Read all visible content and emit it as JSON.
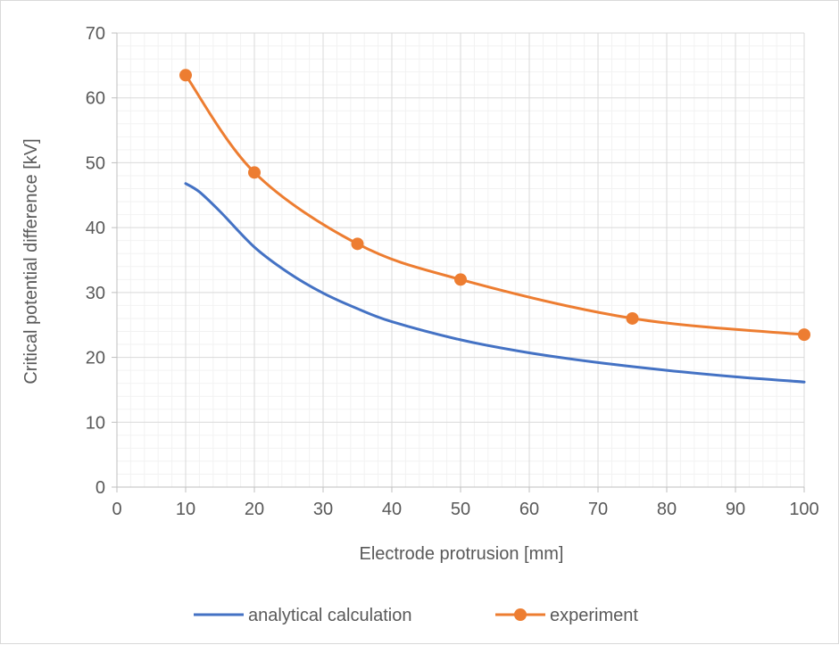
{
  "chart_data": {
    "type": "line",
    "title": "",
    "xlabel": "Electrode protrusion [mm]",
    "ylabel": "Critical potential difference [kV]",
    "xlim": [
      0,
      100
    ],
    "ylim": [
      0,
      70
    ],
    "x_ticks": [
      0,
      10,
      20,
      30,
      40,
      50,
      60,
      70,
      80,
      90,
      100
    ],
    "y_ticks": [
      0,
      10,
      20,
      30,
      40,
      50,
      60,
      70
    ],
    "grid": true,
    "minor_grid": true,
    "legend_position": "bottom",
    "series": [
      {
        "name": "analytical calculation",
        "color": "#4472C4",
        "markers": false,
        "smooth": true,
        "x": [
          10,
          12,
          15,
          20,
          25,
          30,
          35,
          40,
          50,
          60,
          70,
          80,
          90,
          100
        ],
        "y": [
          46.8,
          45.5,
          42.5,
          37.0,
          33.0,
          29.9,
          27.5,
          25.5,
          22.7,
          20.7,
          19.2,
          18.0,
          17.0,
          16.2
        ]
      },
      {
        "name": "experiment",
        "color": "#ED7D31",
        "markers": true,
        "smooth": true,
        "x": [
          10,
          20,
          35,
          50,
          75,
          100
        ],
        "y": [
          63.5,
          48.5,
          37.5,
          32.0,
          26.0,
          23.5
        ]
      }
    ]
  }
}
